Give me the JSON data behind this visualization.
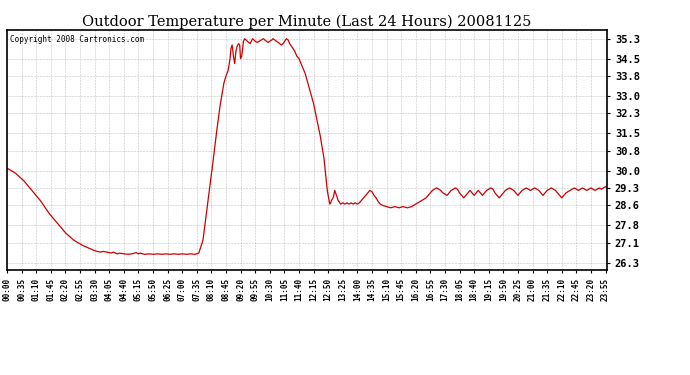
{
  "title": "Outdoor Temperature per Minute (Last 24 Hours) 20081125",
  "copyright_text": "Copyright 2008 Cartronics.com",
  "line_color": "#cc0000",
  "background_color": "#ffffff",
  "grid_color": "#888888",
  "yticks": [
    26.3,
    27.1,
    27.8,
    28.6,
    29.3,
    30.0,
    30.8,
    31.5,
    32.3,
    33.0,
    33.8,
    34.5,
    35.3
  ],
  "ylim": [
    26.0,
    35.65
  ],
  "x_tick_labels": [
    "00:00",
    "00:35",
    "01:10",
    "01:45",
    "02:20",
    "02:55",
    "03:30",
    "04:05",
    "04:40",
    "05:15",
    "05:50",
    "06:25",
    "07:00",
    "07:35",
    "08:10",
    "08:45",
    "09:20",
    "09:55",
    "10:30",
    "11:05",
    "11:40",
    "12:15",
    "12:50",
    "13:25",
    "14:00",
    "14:35",
    "15:10",
    "15:45",
    "16:20",
    "16:55",
    "17:30",
    "18:05",
    "18:40",
    "19:15",
    "19:50",
    "20:25",
    "21:00",
    "21:35",
    "22:10",
    "22:45",
    "23:20",
    "23:55"
  ],
  "keypoints": [
    [
      0,
      30.1
    ],
    [
      20,
      29.9
    ],
    [
      40,
      29.6
    ],
    [
      60,
      29.2
    ],
    [
      80,
      28.8
    ],
    [
      100,
      28.3
    ],
    [
      120,
      27.9
    ],
    [
      140,
      27.5
    ],
    [
      160,
      27.2
    ],
    [
      180,
      27.0
    ],
    [
      200,
      26.85
    ],
    [
      215,
      26.75
    ],
    [
      225,
      26.72
    ],
    [
      230,
      26.75
    ],
    [
      240,
      26.72
    ],
    [
      245,
      26.7
    ],
    [
      250,
      26.68
    ],
    [
      255,
      26.72
    ],
    [
      260,
      26.68
    ],
    [
      265,
      26.65
    ],
    [
      270,
      26.68
    ],
    [
      280,
      26.65
    ],
    [
      290,
      26.63
    ],
    [
      300,
      26.65
    ],
    [
      310,
      26.7
    ],
    [
      315,
      26.65
    ],
    [
      320,
      26.68
    ],
    [
      325,
      26.65
    ],
    [
      330,
      26.63
    ],
    [
      340,
      26.65
    ],
    [
      350,
      26.63
    ],
    [
      360,
      26.65
    ],
    [
      370,
      26.63
    ],
    [
      380,
      26.65
    ],
    [
      390,
      26.63
    ],
    [
      400,
      26.65
    ],
    [
      410,
      26.63
    ],
    [
      420,
      26.65
    ],
    [
      430,
      26.63
    ],
    [
      440,
      26.65
    ],
    [
      450,
      26.63
    ],
    [
      455,
      26.65
    ],
    [
      460,
      26.68
    ],
    [
      470,
      27.2
    ],
    [
      480,
      28.5
    ],
    [
      490,
      29.8
    ],
    [
      500,
      31.2
    ],
    [
      510,
      32.5
    ],
    [
      520,
      33.5
    ],
    [
      525,
      33.8
    ],
    [
      530,
      34.0
    ],
    [
      535,
      34.5
    ],
    [
      537,
      34.9
    ],
    [
      540,
      35.05
    ],
    [
      543,
      34.6
    ],
    [
      546,
      34.3
    ],
    [
      549,
      34.8
    ],
    [
      552,
      35.0
    ],
    [
      555,
      35.1
    ],
    [
      558,
      35.05
    ],
    [
      560,
      34.5
    ],
    [
      563,
      34.6
    ],
    [
      567,
      35.2
    ],
    [
      570,
      35.3
    ],
    [
      573,
      35.25
    ],
    [
      576,
      35.2
    ],
    [
      580,
      35.15
    ],
    [
      583,
      35.1
    ],
    [
      586,
      35.2
    ],
    [
      589,
      35.3
    ],
    [
      592,
      35.25
    ],
    [
      595,
      35.2
    ],
    [
      600,
      35.15
    ],
    [
      605,
      35.2
    ],
    [
      610,
      35.25
    ],
    [
      615,
      35.3
    ],
    [
      618,
      35.25
    ],
    [
      622,
      35.2
    ],
    [
      626,
      35.15
    ],
    [
      630,
      35.2
    ],
    [
      635,
      35.25
    ],
    [
      638,
      35.3
    ],
    [
      642,
      35.25
    ],
    [
      646,
      35.2
    ],
    [
      650,
      35.15
    ],
    [
      654,
      35.1
    ],
    [
      658,
      35.05
    ],
    [
      662,
      35.1
    ],
    [
      666,
      35.2
    ],
    [
      670,
      35.3
    ],
    [
      674,
      35.25
    ],
    [
      678,
      35.1
    ],
    [
      682,
      35.0
    ],
    [
      686,
      34.9
    ],
    [
      690,
      34.8
    ],
    [
      695,
      34.6
    ],
    [
      700,
      34.5
    ],
    [
      705,
      34.3
    ],
    [
      710,
      34.1
    ],
    [
      715,
      33.9
    ],
    [
      720,
      33.6
    ],
    [
      725,
      33.3
    ],
    [
      730,
      33.0
    ],
    [
      735,
      32.7
    ],
    [
      740,
      32.3
    ],
    [
      745,
      31.9
    ],
    [
      750,
      31.5
    ],
    [
      755,
      31.0
    ],
    [
      760,
      30.5
    ],
    [
      763,
      30.0
    ],
    [
      766,
      29.5
    ],
    [
      768,
      29.2
    ],
    [
      770,
      29.0
    ],
    [
      772,
      28.8
    ],
    [
      774,
      28.65
    ],
    [
      776,
      28.7
    ],
    [
      778,
      28.8
    ],
    [
      780,
      28.85
    ],
    [
      782,
      28.9
    ],
    [
      784,
      29.05
    ],
    [
      786,
      29.2
    ],
    [
      788,
      29.1
    ],
    [
      790,
      29.0
    ],
    [
      792,
      28.9
    ],
    [
      794,
      28.8
    ],
    [
      796,
      28.75
    ],
    [
      798,
      28.7
    ],
    [
      800,
      28.65
    ],
    [
      805,
      28.7
    ],
    [
      810,
      28.65
    ],
    [
      815,
      28.7
    ],
    [
      820,
      28.65
    ],
    [
      825,
      28.7
    ],
    [
      830,
      28.65
    ],
    [
      835,
      28.7
    ],
    [
      840,
      28.65
    ],
    [
      845,
      28.7
    ],
    [
      850,
      28.8
    ],
    [
      855,
      28.9
    ],
    [
      860,
      29.0
    ],
    [
      865,
      29.1
    ],
    [
      870,
      29.2
    ],
    [
      875,
      29.15
    ],
    [
      880,
      29.0
    ],
    [
      885,
      28.9
    ],
    [
      890,
      28.75
    ],
    [
      895,
      28.65
    ],
    [
      900,
      28.6
    ],
    [
      910,
      28.55
    ],
    [
      920,
      28.5
    ],
    [
      930,
      28.55
    ],
    [
      940,
      28.5
    ],
    [
      950,
      28.55
    ],
    [
      960,
      28.5
    ],
    [
      970,
      28.55
    ],
    [
      975,
      28.6
    ],
    [
      980,
      28.65
    ],
    [
      985,
      28.7
    ],
    [
      990,
      28.75
    ],
    [
      995,
      28.8
    ],
    [
      1000,
      28.85
    ],
    [
      1005,
      28.9
    ],
    [
      1010,
      29.0
    ],
    [
      1015,
      29.1
    ],
    [
      1020,
      29.2
    ],
    [
      1025,
      29.25
    ],
    [
      1030,
      29.3
    ],
    [
      1035,
      29.25
    ],
    [
      1040,
      29.2
    ],
    [
      1045,
      29.1
    ],
    [
      1050,
      29.05
    ],
    [
      1055,
      29.0
    ],
    [
      1060,
      29.1
    ],
    [
      1065,
      29.2
    ],
    [
      1070,
      29.25
    ],
    [
      1075,
      29.3
    ],
    [
      1080,
      29.25
    ],
    [
      1085,
      29.1
    ],
    [
      1090,
      29.0
    ],
    [
      1095,
      28.9
    ],
    [
      1100,
      29.0
    ],
    [
      1105,
      29.1
    ],
    [
      1110,
      29.2
    ],
    [
      1115,
      29.1
    ],
    [
      1120,
      29.0
    ],
    [
      1125,
      29.1
    ],
    [
      1130,
      29.2
    ],
    [
      1135,
      29.1
    ],
    [
      1140,
      29.0
    ],
    [
      1145,
      29.1
    ],
    [
      1150,
      29.2
    ],
    [
      1155,
      29.25
    ],
    [
      1160,
      29.3
    ],
    [
      1165,
      29.25
    ],
    [
      1170,
      29.1
    ],
    [
      1175,
      29.0
    ],
    [
      1180,
      28.9
    ],
    [
      1185,
      29.0
    ],
    [
      1190,
      29.1
    ],
    [
      1195,
      29.2
    ],
    [
      1200,
      29.25
    ],
    [
      1205,
      29.3
    ],
    [
      1210,
      29.25
    ],
    [
      1215,
      29.2
    ],
    [
      1220,
      29.1
    ],
    [
      1225,
      29.0
    ],
    [
      1230,
      29.1
    ],
    [
      1235,
      29.2
    ],
    [
      1240,
      29.25
    ],
    [
      1245,
      29.3
    ],
    [
      1250,
      29.25
    ],
    [
      1255,
      29.2
    ],
    [
      1260,
      29.25
    ],
    [
      1265,
      29.3
    ],
    [
      1270,
      29.25
    ],
    [
      1275,
      29.2
    ],
    [
      1280,
      29.1
    ],
    [
      1285,
      29.0
    ],
    [
      1290,
      29.1
    ],
    [
      1295,
      29.2
    ],
    [
      1300,
      29.25
    ],
    [
      1305,
      29.3
    ],
    [
      1310,
      29.25
    ],
    [
      1315,
      29.2
    ],
    [
      1320,
      29.1
    ],
    [
      1325,
      29.0
    ],
    [
      1330,
      28.9
    ],
    [
      1335,
      29.0
    ],
    [
      1340,
      29.1
    ],
    [
      1345,
      29.15
    ],
    [
      1350,
      29.2
    ],
    [
      1355,
      29.25
    ],
    [
      1360,
      29.3
    ],
    [
      1365,
      29.25
    ],
    [
      1370,
      29.2
    ],
    [
      1375,
      29.25
    ],
    [
      1380,
      29.3
    ],
    [
      1385,
      29.25
    ],
    [
      1390,
      29.2
    ],
    [
      1395,
      29.25
    ],
    [
      1400,
      29.3
    ],
    [
      1405,
      29.25
    ],
    [
      1410,
      29.2
    ],
    [
      1415,
      29.25
    ],
    [
      1420,
      29.3
    ],
    [
      1425,
      29.25
    ],
    [
      1430,
      29.3
    ],
    [
      1435,
      29.35
    ],
    [
      1439,
      29.3
    ]
  ]
}
